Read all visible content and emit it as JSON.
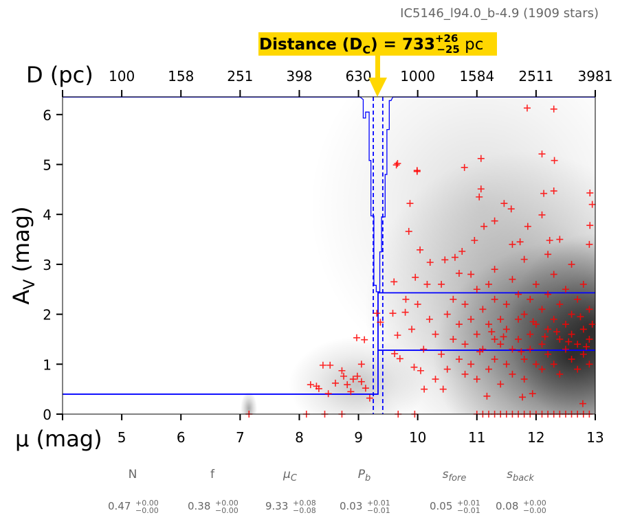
{
  "chart_data": {
    "type": "scatter",
    "title": "IC5146_l94.0_b-4.9 (1909 stars)",
    "xlabel": "μ (mag)",
    "ylabel_main": "A",
    "ylabel_sub": "V",
    "ylabel_unit": " (mag)",
    "top_xlabel": "D (pc)",
    "xlim": [
      4,
      13
    ],
    "ylim": [
      0,
      6.35
    ],
    "x_ticks": [
      4,
      5,
      6,
      7,
      8,
      9,
      10,
      11,
      12,
      13
    ],
    "x_tick_labels": [
      "5",
      "6",
      "7",
      "8",
      "9",
      "10",
      "11",
      "12",
      "13"
    ],
    "y_ticks": [
      0,
      1,
      2,
      3,
      4,
      5,
      6
    ],
    "y_tick_labels": [
      "0",
      "1",
      "2",
      "3",
      "4",
      "5",
      "6"
    ],
    "top_ticks": [
      5,
      6,
      7,
      8,
      9,
      10,
      11,
      12,
      13
    ],
    "top_tick_labels": [
      "100",
      "158",
      "251",
      "398",
      "630",
      "1000",
      "1584",
      "2511",
      "3981"
    ],
    "annotation": {
      "prefix": "Distance (D",
      "sub": "C",
      "mid": ") = 733",
      "plus": "+26",
      "minus": "−25",
      "unit": " pc",
      "mu_c": 9.33
    },
    "colors": {
      "stars": "#ff0000",
      "model": "#0000ff",
      "annotation": "#ffd700"
    },
    "model_line": [
      [
        4,
        0.4
      ],
      [
        9.33,
        0.4
      ],
      [
        9.33,
        2.43
      ],
      [
        13,
        2.43
      ]
    ],
    "model_line_2": [
      [
        9.33,
        1.28
      ],
      [
        13,
        1.28
      ]
    ],
    "mu_c_bounds": [
      9.25,
      9.41
    ],
    "posterior_curve": [
      [
        4,
        6.35
      ],
      [
        9.03,
        6.35
      ],
      [
        9.08,
        6.3
      ],
      [
        9.08,
        5.93
      ],
      [
        9.12,
        5.93
      ],
      [
        9.12,
        6.05
      ],
      [
        9.18,
        6.05
      ],
      [
        9.18,
        5.08
      ],
      [
        9.21,
        5.08
      ],
      [
        9.21,
        3.97
      ],
      [
        9.26,
        3.97
      ],
      [
        9.26,
        2.58
      ],
      [
        9.3,
        2.58
      ],
      [
        9.3,
        2.45
      ],
      [
        9.36,
        2.45
      ],
      [
        9.36,
        3.25
      ],
      [
        9.39,
        3.25
      ],
      [
        9.39,
        3.95
      ],
      [
        9.45,
        3.95
      ],
      [
        9.45,
        4.8
      ],
      [
        9.48,
        4.8
      ],
      [
        9.48,
        5.7
      ],
      [
        9.52,
        5.7
      ],
      [
        9.52,
        6.28
      ],
      [
        9.55,
        6.28
      ],
      [
        9.58,
        6.35
      ],
      [
        13,
        6.35
      ]
    ],
    "stars": [
      [
        11.85,
        6.13
      ],
      [
        12.3,
        6.11
      ],
      [
        12.1,
        5.21
      ],
      [
        12.31,
        5.08
      ],
      [
        9.66,
        5.02
      ],
      [
        9.64,
        4.99
      ],
      [
        9.99,
        4.88
      ],
      [
        9.99,
        4.86
      ],
      [
        10.79,
        4.94
      ],
      [
        11.07,
        5.12
      ],
      [
        11.07,
        4.51
      ],
      [
        11.04,
        4.35
      ],
      [
        9.87,
        4.22
      ],
      [
        12.13,
        4.42
      ],
      [
        12.3,
        4.47
      ],
      [
        12.91,
        4.43
      ],
      [
        12.95,
        4.2
      ],
      [
        12.1,
        3.99
      ],
      [
        11.46,
        4.22
      ],
      [
        11.58,
        4.11
      ],
      [
        11.12,
        3.76
      ],
      [
        11.3,
        3.87
      ],
      [
        11.86,
        3.76
      ],
      [
        9.85,
        3.66
      ],
      [
        10.04,
        3.29
      ],
      [
        12.91,
        3.78
      ],
      [
        10.75,
        3.26
      ],
      [
        10.96,
        3.48
      ],
      [
        11.73,
        3.45
      ],
      [
        12.23,
        3.48
      ],
      [
        10.21,
        3.04
      ],
      [
        10.46,
        3.09
      ],
      [
        10.63,
        3.14
      ],
      [
        9.6,
        2.65
      ],
      [
        9.96,
        2.74
      ],
      [
        10.16,
        2.6
      ],
      [
        10.7,
        2.82
      ],
      [
        9.79,
        2.04
      ],
      [
        9.58,
        2.02
      ],
      [
        9.31,
        2.02
      ],
      [
        9.37,
        1.84
      ],
      [
        9.66,
        1.58
      ],
      [
        8.97,
        1.53
      ],
      [
        9.1,
        1.49
      ],
      [
        9.61,
        1.21
      ],
      [
        9.7,
        1.11
      ],
      [
        9.94,
        0.94
      ],
      [
        10.05,
        0.87
      ],
      [
        8.4,
        0.98
      ],
      [
        8.52,
        0.98
      ],
      [
        8.72,
        0.87
      ],
      [
        8.75,
        0.76
      ],
      [
        8.61,
        0.62
      ],
      [
        8.29,
        0.56
      ],
      [
        8.19,
        0.59
      ],
      [
        8.33,
        0.51
      ],
      [
        8.49,
        0.41
      ],
      [
        8.81,
        0.59
      ],
      [
        8.91,
        0.7
      ],
      [
        9.05,
        0.65
      ],
      [
        9.05,
        1.0
      ],
      [
        9.12,
        0.52
      ],
      [
        9.19,
        0.32
      ],
      [
        8.87,
        0.45
      ],
      [
        8.98,
        0.76
      ],
      [
        10.11,
        0.5
      ],
      [
        10.43,
        0.5
      ],
      [
        11.17,
        0.36
      ],
      [
        11.77,
        0.34
      ],
      [
        11.94,
        0.41
      ],
      [
        12.79,
        0.21
      ],
      [
        10.3,
        1.6
      ],
      [
        10.4,
        1.2
      ],
      [
        10.5,
        2.0
      ],
      [
        10.5,
        0.9
      ],
      [
        10.6,
        1.5
      ],
      [
        10.6,
        2.3
      ],
      [
        10.7,
        1.1
      ],
      [
        10.7,
        1.8
      ],
      [
        10.8,
        0.8
      ],
      [
        10.8,
        2.2
      ],
      [
        10.8,
        1.4
      ],
      [
        10.9,
        1.9
      ],
      [
        10.9,
        1.0
      ],
      [
        11.0,
        1.6
      ],
      [
        11.0,
        2.5
      ],
      [
        11.0,
        0.7
      ],
      [
        11.1,
        1.3
      ],
      [
        11.1,
        2.1
      ],
      [
        11.2,
        1.8
      ],
      [
        11.2,
        0.9
      ],
      [
        11.2,
        2.6
      ],
      [
        11.3,
        1.5
      ],
      [
        11.3,
        1.1
      ],
      [
        11.3,
        2.3
      ],
      [
        11.4,
        1.9
      ],
      [
        11.4,
        0.6
      ],
      [
        11.4,
        1.4
      ],
      [
        11.5,
        2.2
      ],
      [
        11.5,
        1.0
      ],
      [
        11.5,
        1.7
      ],
      [
        11.6,
        2.7
      ],
      [
        11.6,
        1.3
      ],
      [
        11.6,
        0.8
      ],
      [
        11.7,
        1.9
      ],
      [
        11.7,
        1.5
      ],
      [
        11.7,
        2.4
      ],
      [
        11.8,
        1.1
      ],
      [
        11.8,
        2.0
      ],
      [
        11.8,
        0.7
      ],
      [
        11.9,
        1.6
      ],
      [
        11.9,
        2.3
      ],
      [
        11.9,
        1.3
      ],
      [
        12.0,
        1.8
      ],
      [
        12.0,
        1.0
      ],
      [
        12.0,
        2.6
      ],
      [
        12.1,
        1.4
      ],
      [
        12.1,
        2.1
      ],
      [
        12.1,
        0.9
      ],
      [
        12.2,
        1.7
      ],
      [
        12.2,
        2.4
      ],
      [
        12.2,
        1.2
      ],
      [
        12.3,
        1.9
      ],
      [
        12.3,
        1.0
      ],
      [
        12.3,
        2.8
      ],
      [
        12.4,
        1.5
      ],
      [
        12.4,
        2.2
      ],
      [
        12.4,
        0.8
      ],
      [
        12.5,
        1.8
      ],
      [
        12.5,
        1.3
      ],
      [
        12.5,
        2.5
      ],
      [
        12.6,
        1.6
      ],
      [
        12.6,
        2.0
      ],
      [
        12.6,
        1.1
      ],
      [
        12.7,
        1.4
      ],
      [
        12.7,
        2.3
      ],
      [
        12.7,
        0.9
      ],
      [
        12.8,
        1.7
      ],
      [
        12.8,
        2.6
      ],
      [
        12.8,
        1.2
      ],
      [
        12.9,
        1.5
      ],
      [
        12.9,
        2.1
      ],
      [
        12.9,
        1.0
      ],
      [
        12.95,
        1.8
      ],
      [
        10.4,
        2.6
      ],
      [
        10.9,
        2.8
      ],
      [
        11.3,
        2.9
      ],
      [
        11.8,
        3.1
      ],
      [
        12.2,
        3.2
      ],
      [
        12.6,
        3.0
      ],
      [
        12.9,
        3.4
      ],
      [
        11.6,
        3.4
      ],
      [
        12.4,
        3.5
      ],
      [
        10.2,
        1.9
      ],
      [
        10.1,
        1.3
      ],
      [
        10.0,
        2.2
      ],
      [
        9.9,
        1.7
      ],
      [
        9.8,
        2.3
      ],
      [
        10.3,
        0.7
      ],
      [
        11.05,
        1.25
      ],
      [
        11.45,
        1.55
      ],
      [
        11.95,
        1.85
      ],
      [
        12.35,
        1.65
      ],
      [
        12.75,
        1.95
      ],
      [
        11.25,
        1.65
      ],
      [
        11.75,
        1.25
      ],
      [
        12.15,
        1.55
      ],
      [
        12.55,
        1.45
      ],
      [
        12.85,
        1.35
      ],
      [
        8.12,
        0
      ],
      [
        8.43,
        0
      ],
      [
        8.72,
        0
      ],
      [
        9.67,
        0
      ],
      [
        9.95,
        0
      ],
      [
        7.15,
        0
      ],
      [
        11.0,
        0
      ],
      [
        11.1,
        0
      ],
      [
        11.2,
        0
      ],
      [
        11.3,
        0
      ],
      [
        11.4,
        0
      ],
      [
        11.5,
        0
      ],
      [
        11.6,
        0
      ],
      [
        11.7,
        0
      ],
      [
        11.8,
        0
      ],
      [
        11.9,
        0
      ],
      [
        12.0,
        0
      ],
      [
        12.1,
        0
      ],
      [
        12.2,
        0
      ],
      [
        12.3,
        0
      ],
      [
        12.4,
        0
      ],
      [
        12.5,
        0
      ],
      [
        12.6,
        0
      ],
      [
        12.7,
        0
      ],
      [
        12.8,
        0
      ],
      [
        12.9,
        0
      ]
    ]
  },
  "params": [
    {
      "label": "N",
      "value": "0.47",
      "plus": "+0.00",
      "minus": "−0.00"
    },
    {
      "label": "f",
      "value": "0.38",
      "plus": "+0.00",
      "minus": "−0.00"
    },
    {
      "label": "μ",
      "label_sub": "C",
      "value": "9.33",
      "plus": "+0.08",
      "minus": "−0.08"
    },
    {
      "label": "P",
      "label_sub": "b",
      "value": "0.03",
      "plus": "+0.01",
      "minus": "−0.01"
    },
    {
      "label": "s",
      "label_sub": "fore",
      "value": "0.05",
      "plus": "+0.01",
      "minus": "−0.01"
    },
    {
      "label": "s",
      "label_sub": "back",
      "value": "0.08",
      "plus": "+0.00",
      "minus": "−0.00"
    }
  ]
}
